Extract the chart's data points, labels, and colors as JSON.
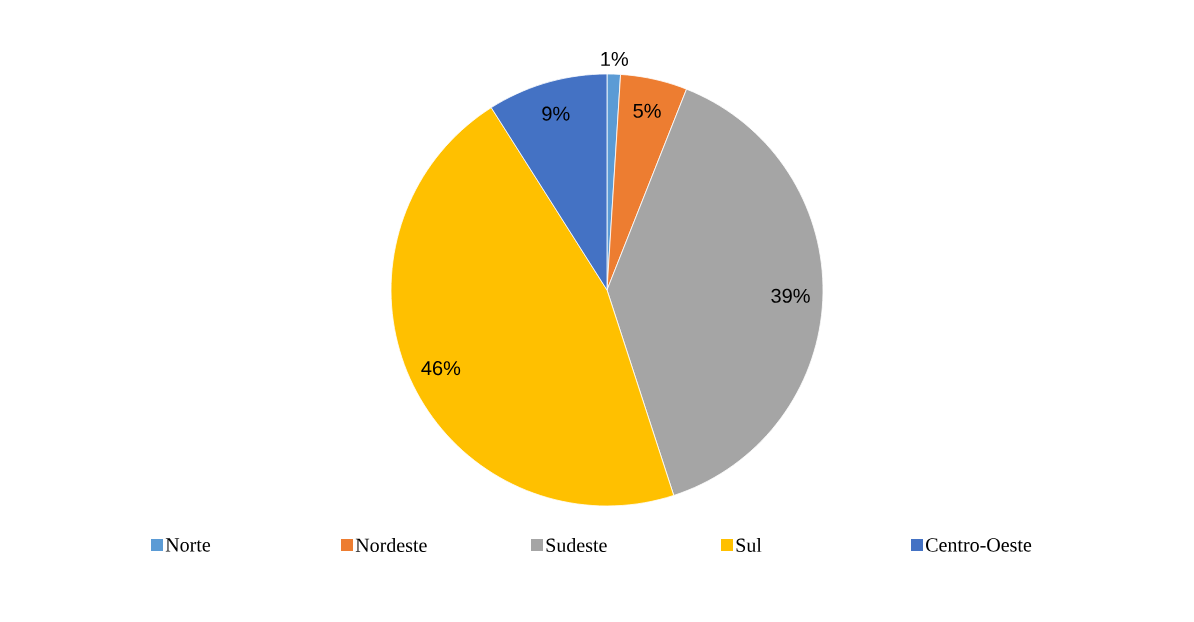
{
  "chart_data": {
    "type": "pie",
    "categories": [
      "Norte",
      "Nordeste",
      "Sudeste",
      "Sul",
      "Centro-Oeste"
    ],
    "values": [
      1,
      5,
      39,
      46,
      9
    ],
    "value_labels": [
      "1%",
      "5%",
      "39%",
      "46%",
      "9%"
    ],
    "colors": [
      "#5b9bd5",
      "#ed7d31",
      "#a5a5a5",
      "#ffc000",
      "#4472c4"
    ],
    "legend": "bottom"
  }
}
